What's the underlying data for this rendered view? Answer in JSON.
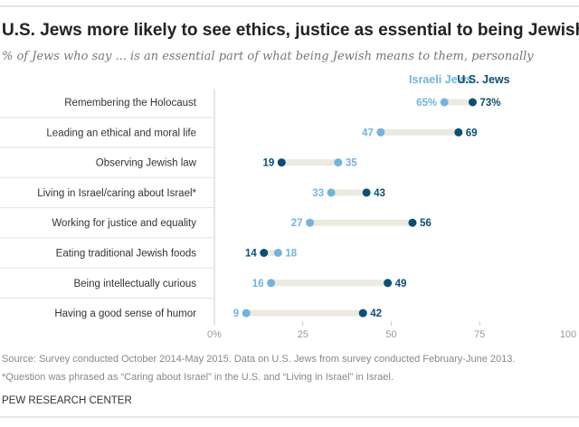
{
  "chart_data": {
    "type": "dot",
    "title": "U.S. Jews more likely to see ethics, justice as essential to being Jewish",
    "subtitle": "% of Jews who say ... is an essential part of what being Jewish means to them, personally",
    "categories": [
      "Remembering the Holocaust",
      "Leading an ethical and moral life",
      "Observing Jewish law",
      "Living in Israel/caring about Israel*",
      "Working for justice and equality",
      "Eating traditional Jewish foods",
      "Being intellectually curious",
      "Having a good sense of humor"
    ],
    "series": [
      {
        "name": "Israeli Jews",
        "color": "#74b3dc",
        "values": [
          65,
          47,
          35,
          33,
          27,
          18,
          16,
          9
        ]
      },
      {
        "name": "U.S. Jews",
        "color": "#0b4f74",
        "values": [
          73,
          69,
          19,
          43,
          56,
          14,
          49,
          42
        ]
      }
    ],
    "xlim": [
      0,
      100
    ],
    "xticks": [
      "0%",
      "25",
      "50",
      "75",
      "100"
    ],
    "legend": "top-right",
    "grid": false,
    "track_color": "#ece9df"
  },
  "footer": {
    "source": "Source: Survey conducted October 2014-May 2015. Data on U.S. Jews from survey conducted February-June 2013.",
    "note": "*Question was phrased as “Caring about Israel” in the U.S. and “Living in Israel” in Israel.",
    "brand": "PEW RESEARCH CENTER"
  }
}
